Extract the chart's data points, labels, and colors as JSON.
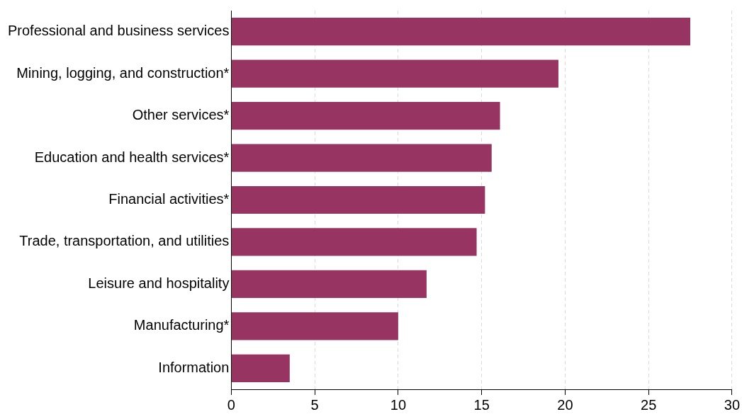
{
  "chart_data": {
    "type": "bar",
    "orientation": "horizontal",
    "categories": [
      "Professional and business services",
      "Mining, logging, and construction*",
      "Other services*",
      "Education and health services*",
      "Financial activities*",
      "Trade, transportation, and utilities",
      "Leisure and hospitality",
      "Manufacturing*",
      "Information"
    ],
    "values": [
      27.5,
      19.6,
      16.1,
      15.6,
      15.2,
      14.7,
      11.7,
      10.0,
      3.5
    ],
    "color": "#983462",
    "xlim": [
      0,
      30
    ],
    "xticks": [
      0,
      5,
      10,
      15,
      20,
      25,
      30
    ],
    "grid": "x",
    "legend": false
  }
}
